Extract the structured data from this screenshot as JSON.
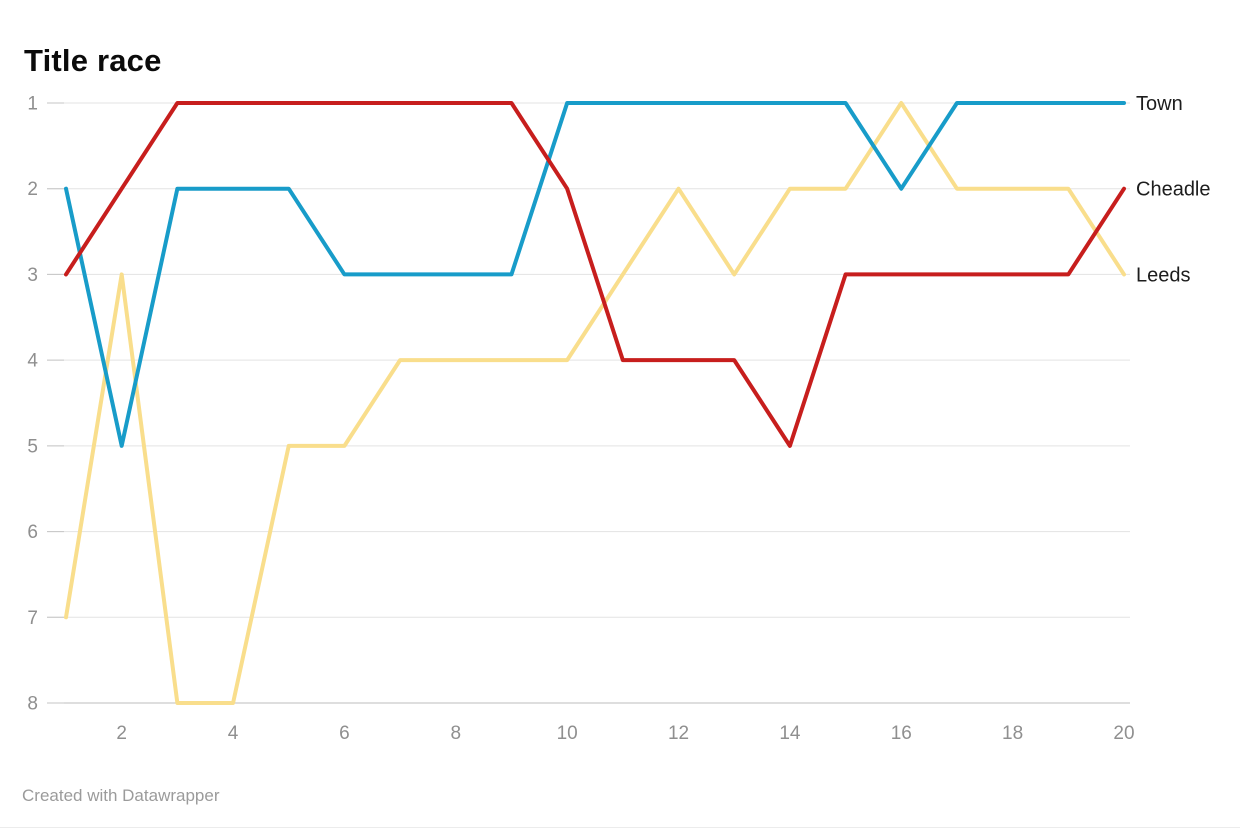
{
  "header": {
    "title": "Title race"
  },
  "footer": {
    "credit": "Created with Datawrapper"
  },
  "style": {
    "grid_color": "#e3e3e3",
    "baseline_color": "#bebebe",
    "tick_color": "#c6c6c6",
    "axis_text_color": "#8f8f8f",
    "series_label_color": "#1d1d1d",
    "line_width": 4
  },
  "chart_data": {
    "type": "line",
    "title": "Title race",
    "xlabel": "",
    "ylabel": "",
    "x": [
      1,
      2,
      3,
      4,
      5,
      6,
      7,
      8,
      9,
      10,
      11,
      12,
      13,
      14,
      15,
      16,
      17,
      18,
      19,
      20
    ],
    "x_ticks": [
      "2",
      "4",
      "6",
      "8",
      "10",
      "12",
      "14",
      "16",
      "18",
      "20"
    ],
    "y_ticks": [
      "1",
      "2",
      "3",
      "4",
      "5",
      "6",
      "7",
      "8"
    ],
    "xlim": [
      1,
      20
    ],
    "ylim": [
      1,
      8
    ],
    "y_inverted": true,
    "grid": "horizontal",
    "legend_position": "right-inline",
    "series": [
      {
        "name": "Town",
        "color": "#189CC9",
        "z": 1,
        "values": [
          2,
          5,
          2,
          2,
          2,
          3,
          3,
          3,
          3,
          1,
          1,
          1,
          1,
          1,
          1,
          2,
          1,
          1,
          1,
          1
        ]
      },
      {
        "name": "Cheadle",
        "color": "#C71E1D",
        "z": 2,
        "values": [
          3,
          2,
          1,
          1,
          1,
          1,
          1,
          1,
          1,
          2,
          4,
          4,
          4,
          5,
          3,
          3,
          3,
          3,
          3,
          2
        ]
      },
      {
        "name": "Leeds",
        "color": "#F9DE8C",
        "z": 0,
        "values": [
          7,
          3,
          8,
          8,
          5,
          5,
          4,
          4,
          4,
          4,
          3,
          2,
          3,
          2,
          2,
          1,
          2,
          2,
          2,
          3
        ]
      }
    ]
  }
}
